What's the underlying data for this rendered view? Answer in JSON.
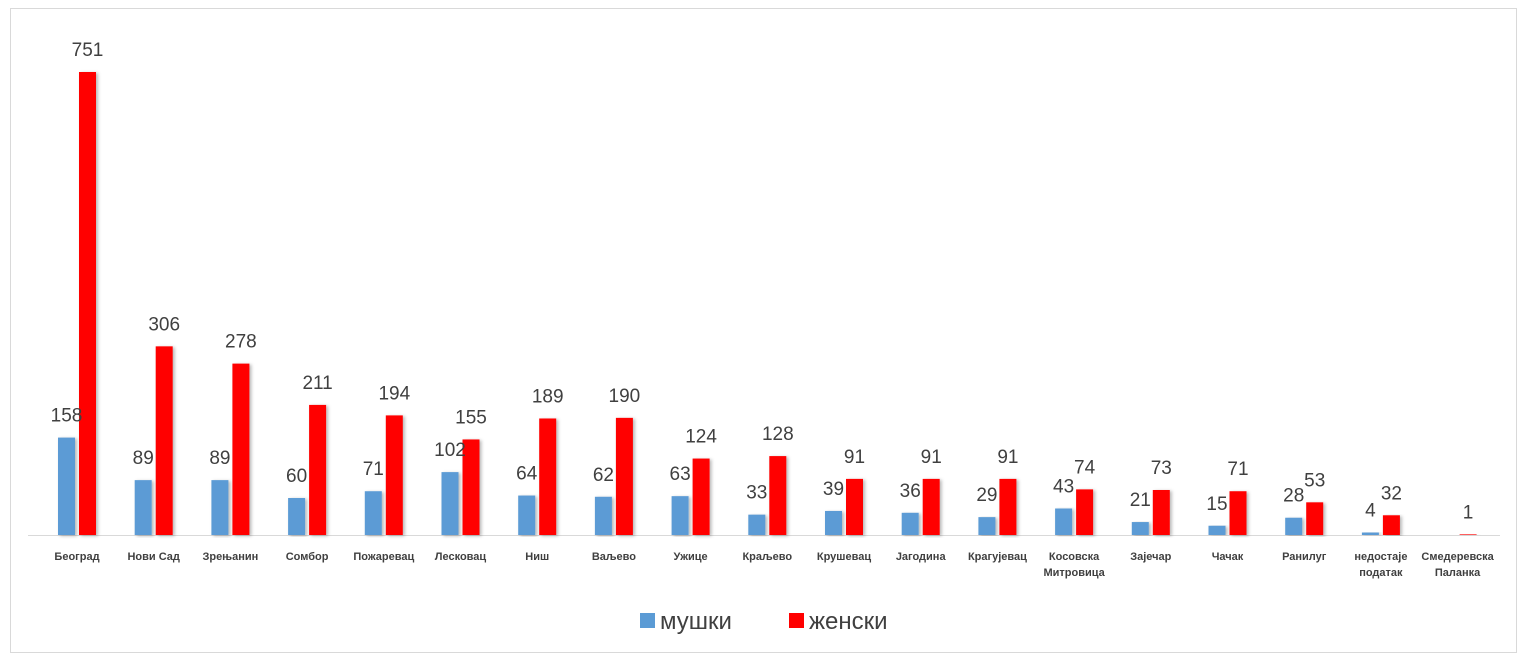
{
  "chart_data": {
    "type": "bar",
    "categories": [
      [
        "Београд"
      ],
      [
        "Нови Сад"
      ],
      [
        "Зрењанин"
      ],
      [
        "Сомбор"
      ],
      [
        "Пожаревац"
      ],
      [
        "Лесковац"
      ],
      [
        "Ниш"
      ],
      [
        "Ваљево"
      ],
      [
        "Ужице"
      ],
      [
        "Краљево"
      ],
      [
        "Крушевац"
      ],
      [
        "Јагодина"
      ],
      [
        "Крагујевац"
      ],
      [
        "Косовска",
        "Митровица"
      ],
      [
        "Зајечар"
      ],
      [
        "Чачак"
      ],
      [
        "Ранилуг"
      ],
      [
        "недостаје",
        "податак"
      ],
      [
        "Смедеревска",
        "Паланка"
      ]
    ],
    "series": [
      {
        "name": "мушки",
        "color": "#5b9bd5",
        "values": [
          158,
          89,
          89,
          60,
          71,
          102,
          64,
          62,
          63,
          33,
          39,
          36,
          29,
          43,
          21,
          15,
          28,
          4,
          0
        ]
      },
      {
        "name": "женски",
        "color": "#ff0000",
        "values": [
          751,
          306,
          278,
          211,
          194,
          155,
          189,
          190,
          124,
          128,
          91,
          91,
          91,
          74,
          73,
          71,
          53,
          32,
          1
        ]
      }
    ],
    "value_labels": [
      [
        "158",
        "751"
      ],
      [
        "89",
        "306"
      ],
      [
        "89",
        "278"
      ],
      [
        "60",
        "211"
      ],
      [
        "71",
        "194"
      ],
      [
        "102",
        "155"
      ],
      [
        "64",
        "189"
      ],
      [
        "62",
        "190"
      ],
      [
        "63",
        "124"
      ],
      [
        "33",
        "128"
      ],
      [
        "39",
        "91"
      ],
      [
        "36",
        "91"
      ],
      [
        "29",
        "91"
      ],
      [
        "43",
        "74"
      ],
      [
        "21",
        "73"
      ],
      [
        "15",
        "71"
      ],
      [
        "28",
        "53"
      ],
      [
        "4",
        "32"
      ],
      [
        "",
        "1"
      ]
    ],
    "title": "",
    "xlabel": "",
    "ylabel": "",
    "ylim": [
      0,
      760
    ],
    "grid": false,
    "legend": "bottom-center"
  }
}
